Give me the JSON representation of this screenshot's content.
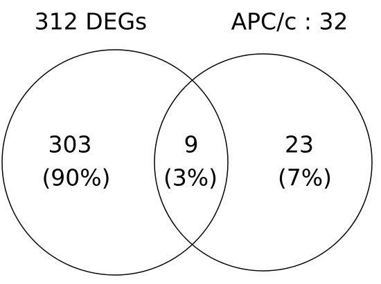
{
  "sets": [
    {
      "label": "312 DEGs"
    },
    {
      "label": "APC/c : 32"
    }
  ],
  "regions": [
    {
      "count": "303",
      "percent": "(90%)"
    },
    {
      "count": "9",
      "percent": "(3%)"
    },
    {
      "count": "23",
      "percent": "(7%)"
    }
  ]
}
